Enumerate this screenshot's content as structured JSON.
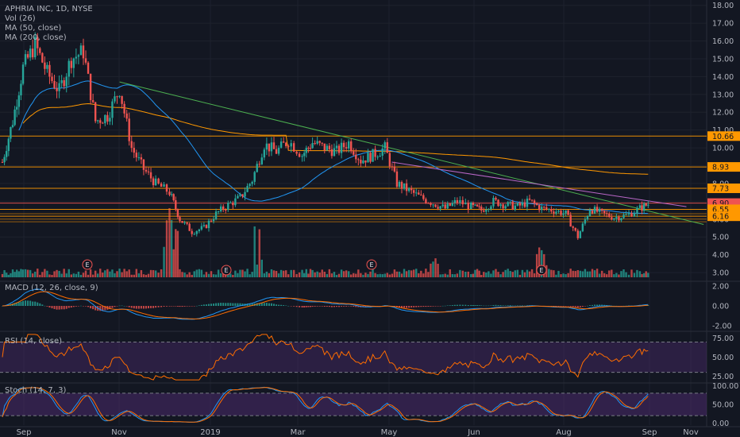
{
  "chart_data": {
    "type": "candlestick",
    "title": "APHRIA INC, 1D, NYSE",
    "indicators": [
      "Vol (26)",
      "MA (50, close)",
      "MA (200, close)"
    ],
    "x_labels": [
      "Sep",
      "Nov",
      "2019",
      "Mar",
      "May",
      "Jun",
      "Aug",
      "Sep",
      "Nov"
    ],
    "price_axis_ticks": [
      "18.00",
      "17.00",
      "16.00",
      "15.00",
      "14.00",
      "13.00",
      "12.00",
      "11.00",
      "10.00",
      "9.00",
      "8.00",
      "7.00",
      "6.00",
      "5.00",
      "4.00",
      "3.00"
    ],
    "price_ylim": [
      2.6,
      18.3
    ],
    "price_series_approx": [
      [
        "2018-08-29",
        9.2
      ],
      [
        "2018-09-04",
        11.5
      ],
      [
        "2018-09-10",
        14.5
      ],
      [
        "2018-09-17",
        15.8
      ],
      [
        "2018-09-24",
        14.2
      ],
      [
        "2018-10-01",
        13.2
      ],
      [
        "2018-10-08",
        15.0
      ],
      [
        "2018-10-15",
        15.4
      ],
      [
        "2018-10-22",
        11.5
      ],
      [
        "2018-10-29",
        11.8
      ],
      [
        "2018-11-05",
        13.3
      ],
      [
        "2018-11-12",
        10.0
      ],
      [
        "2018-11-19",
        8.8
      ],
      [
        "2018-11-26",
        8.0
      ],
      [
        "2018-12-04",
        7.5
      ],
      [
        "2018-12-10",
        6.0
      ],
      [
        "2018-12-17",
        5.3
      ],
      [
        "2018-12-24",
        5.5
      ],
      [
        "2018-12-31",
        6.3
      ],
      [
        "2019-01-07",
        6.8
      ],
      [
        "2019-01-14",
        7.2
      ],
      [
        "2019-01-21",
        8.2
      ],
      [
        "2019-01-28",
        10.2
      ],
      [
        "2019-02-04",
        9.8
      ],
      [
        "2019-02-11",
        10.4
      ],
      [
        "2019-02-19",
        9.6
      ],
      [
        "2019-02-25",
        10.3
      ],
      [
        "2019-03-04",
        10.0
      ],
      [
        "2019-03-11",
        9.8
      ],
      [
        "2019-03-18",
        10.3
      ],
      [
        "2019-03-25",
        9.3
      ],
      [
        "2019-04-01",
        9.6
      ],
      [
        "2019-04-08",
        10.0
      ],
      [
        "2019-04-15",
        8.0
      ],
      [
        "2019-04-22",
        7.6
      ],
      [
        "2019-04-29",
        7.2
      ],
      [
        "2019-05-06",
        6.9
      ],
      [
        "2019-05-13",
        6.6
      ],
      [
        "2019-05-20",
        7.0
      ],
      [
        "2019-05-28",
        6.7
      ],
      [
        "2019-06-03",
        6.5
      ],
      [
        "2019-06-10",
        7.0
      ],
      [
        "2019-06-17",
        6.8
      ],
      [
        "2019-06-24",
        6.7
      ],
      [
        "2019-07-01",
        7.0
      ],
      [
        "2019-07-08",
        6.6
      ],
      [
        "2019-07-15",
        6.5
      ],
      [
        "2019-07-22",
        6.3
      ],
      [
        "2019-07-29",
        5.0
      ],
      [
        "2019-08-05",
        6.6
      ],
      [
        "2019-08-12",
        6.3
      ],
      [
        "2019-08-19",
        6.1
      ],
      [
        "2019-08-26",
        6.2
      ],
      [
        "2019-09-03",
        6.6
      ],
      [
        "2019-09-09",
        6.9
      ]
    ],
    "horizontal_levels": [
      {
        "label": "10.66",
        "value": 10.66,
        "color": "#ff9800"
      },
      {
        "label": "8.93",
        "value": 8.93,
        "color": "#ff9800"
      },
      {
        "label": "7.73",
        "value": 7.73,
        "color": "#ff9800"
      },
      {
        "label": "6.90",
        "value": 6.9,
        "color": "#ef5350"
      },
      {
        "label": "6.55",
        "value": 6.55,
        "color": "#ff9800"
      },
      {
        "label": "6.16",
        "value": 6.16,
        "color": "#ff9800"
      }
    ],
    "earnings_markers": [
      "E",
      "E",
      "E",
      "E"
    ],
    "macd": {
      "label": "MACD (12, 26, close, 9)",
      "ticks": [
        "2.00",
        "0.00",
        "-2.00"
      ],
      "ylim": [
        -2.3,
        2.3
      ]
    },
    "rsi": {
      "label": "RSI (14, close)",
      "ticks": [
        "75.00",
        "50.00",
        "25.00"
      ],
      "bands": [
        70,
        30
      ],
      "ylim": [
        18,
        82
      ]
    },
    "stoch": {
      "label": "Stoch (14, 7, 3)",
      "ticks": [
        "100.00",
        "50.00",
        "0.00"
      ],
      "bands": [
        80,
        20
      ],
      "ylim": [
        -5,
        105
      ]
    }
  },
  "colors": {
    "bg": "#131722",
    "grid": "#1e222d",
    "text": "#b2b5be",
    "up": "#26a69a",
    "down": "#ef5350",
    "ma50": "#2196f3",
    "ma200": "#ff9800",
    "trend_green": "#4caf50",
    "trend_magenta": "#ba68c8",
    "macd_line": "#2196f3",
    "signal_line": "#ff6d00",
    "rsi_line": "#ff6d00",
    "rsi_fill": "#4a2a6b",
    "stoch_k": "#2196f3",
    "stoch_d": "#ff6d00",
    "level": "#ff9800"
  }
}
